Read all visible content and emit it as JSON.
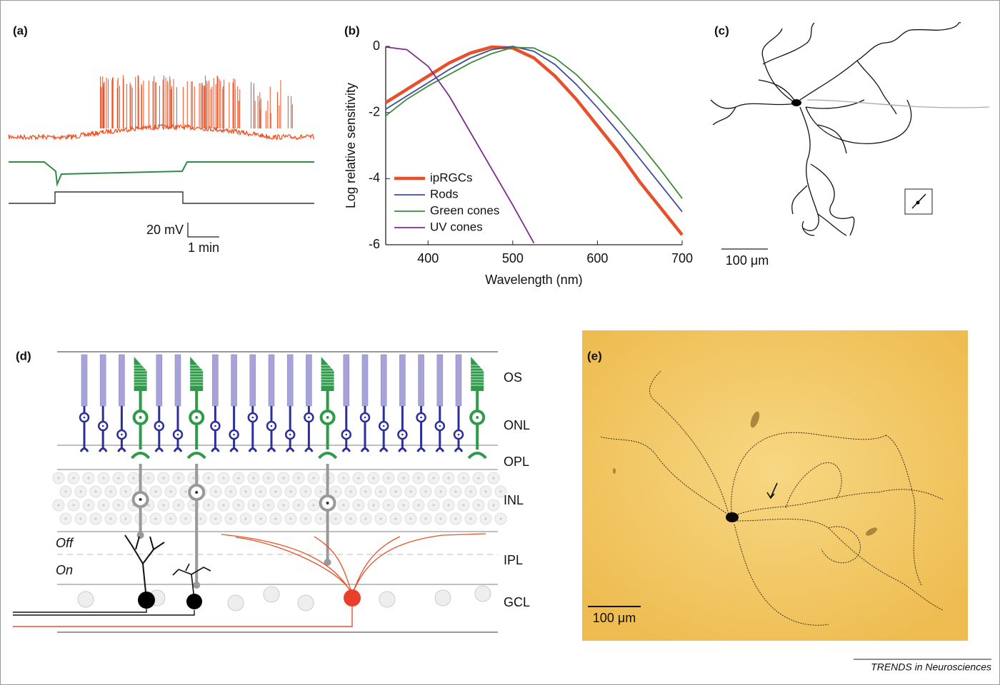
{
  "panels": {
    "a": {
      "label": "(a)",
      "scale_y": "20 mV",
      "scale_x": "1 min"
    },
    "b": {
      "label": "(b)"
    },
    "c": {
      "label": "(c)",
      "scale": "100 μm"
    },
    "d": {
      "label": "(d)",
      "layers": [
        "OS",
        "ONL",
        "OPL",
        "INL",
        "IPL",
        "GCL"
      ],
      "sublayers": [
        "Off",
        "On"
      ]
    },
    "e": {
      "label": "(e)",
      "scale": "100 μm"
    }
  },
  "chart_data": {
    "type": "line",
    "xlabel": "Wavelength (nm)",
    "ylabel": "Log relative sensitivity",
    "x": [
      350,
      375,
      400,
      425,
      450,
      475,
      500,
      525,
      550,
      575,
      600,
      625,
      650,
      675,
      700
    ],
    "series": [
      {
        "name": "ipRGCs",
        "color": "#e8502a",
        "values": [
          -1.7,
          -1.3,
          -0.9,
          -0.5,
          -0.2,
          -0.02,
          -0.05,
          -0.35,
          -0.9,
          -1.6,
          -2.4,
          -3.2,
          -4.1,
          -4.9,
          -5.7
        ]
      },
      {
        "name": "Rods",
        "color": "#3c4aa0",
        "values": [
          -1.9,
          -1.5,
          -1.1,
          -0.7,
          -0.35,
          -0.1,
          0,
          -0.15,
          -0.55,
          -1.15,
          -1.85,
          -2.6,
          -3.4,
          -4.2,
          -5.0
        ]
      },
      {
        "name": "Green cones",
        "color": "#3e8a3a",
        "values": [
          -2.1,
          -1.6,
          -1.2,
          -0.85,
          -0.5,
          -0.22,
          -0.03,
          -0.05,
          -0.35,
          -0.85,
          -1.5,
          -2.2,
          -2.95,
          -3.75,
          -4.6
        ]
      },
      {
        "name": "UV cones",
        "color": "#7b2d8c",
        "values": [
          -0.02,
          -0.1,
          -0.6,
          -1.5,
          -2.6,
          -3.7,
          -4.8,
          -5.95,
          null,
          null,
          null,
          null,
          null,
          null,
          null
        ]
      }
    ],
    "xlim": [
      350,
      700
    ],
    "xticks": [
      400,
      500,
      600,
      700
    ],
    "ylim": [
      -6,
      0
    ],
    "yticks": [
      0,
      -2,
      -4,
      -6
    ],
    "legend": "lower left"
  },
  "footer": "TRENDS in Neurosciences"
}
